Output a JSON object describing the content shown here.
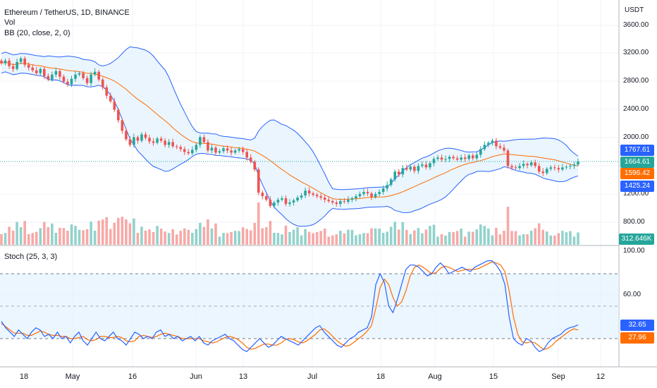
{
  "header": {
    "symbol_title": "Ethereum / TetherUS, 1D, BINANCE",
    "vol_label": "Vol",
    "bb_label": "BB (20, close, 2, 0)",
    "stoch_label": "Stoch (25, 3, 3)"
  },
  "price_axis": {
    "unit": "USDT",
    "ticks": [
      "3600.00",
      "3200.00",
      "2800.00",
      "2400.00",
      "2000.00",
      "1200.00",
      "800.00"
    ]
  },
  "stoch_axis": {
    "ticks": [
      "100.00",
      "60.00"
    ]
  },
  "time_axis": {
    "ticks": [
      "18",
      "May",
      "16",
      "Jun",
      "13",
      "Jul",
      "18",
      "Aug",
      "15",
      "Sep",
      "12"
    ]
  },
  "badges": {
    "bb_upper": "1767.61",
    "last_price": "1664.61",
    "bb_basis": "1596.42",
    "bb_lower": "1425.24",
    "volume": "312.646K",
    "stoch_k": "32.65",
    "stoch_d": "27.96"
  },
  "colors": {
    "up": "#26a69a",
    "down": "#ef5350",
    "bb_band": "#2962ff",
    "bb_basis": "#ff6d00",
    "bb_fill": "#e3f2fd",
    "stoch_k": "#2962ff",
    "stoch_d": "#ff6d00",
    "stoch_band": "#e3f2fd",
    "last_price_badge": "#26a69a",
    "volume_badge": "#26a69a"
  },
  "chart_data": {
    "type": "candlestick",
    "price_ylim": [
      600,
      3800
    ],
    "stoch_ylim": [
      0,
      100
    ],
    "stoch_levels": [
      80,
      50,
      20
    ],
    "close_series": [
      3060,
      3100,
      3020,
      2980,
      3080,
      3130,
      3040,
      3000,
      2960,
      2920,
      2980,
      2880,
      2830,
      2900,
      2950,
      2870,
      2800,
      2760,
      2840,
      2900,
      2920,
      2850,
      2780,
      2900,
      2940,
      2830,
      2720,
      2600,
      2520,
      2400,
      2250,
      2100,
      1980,
      1900,
      2010,
      1960,
      2050,
      2000,
      1950,
      1930,
      1990,
      1960,
      1900,
      1940,
      1880,
      1870,
      1840,
      1800,
      1780,
      1830,
      1900,
      2010,
      1940,
      1820,
      1860,
      1790,
      1810,
      1850,
      1820,
      1790,
      1820,
      1840,
      1800,
      1720,
      1660,
      1550,
      1220,
      1170,
      1120,
      1030,
      1080,
      1120,
      1140,
      1060,
      1080,
      1110,
      1150,
      1180,
      1250,
      1210,
      1190,
      1170,
      1150,
      1120,
      1100,
      1080,
      1060,
      1100,
      1090,
      1120,
      1140,
      1170,
      1200,
      1230,
      1210,
      1160,
      1200,
      1230,
      1280,
      1330,
      1410,
      1520,
      1480,
      1570,
      1550,
      1590,
      1530,
      1600,
      1620,
      1580,
      1640,
      1700,
      1720,
      1690,
      1700,
      1730,
      1710,
      1690,
      1720,
      1700,
      1750,
      1710,
      1760,
      1840,
      1900,
      1930,
      1960,
      1880,
      1860,
      1820,
      1600,
      1580,
      1570,
      1600,
      1630,
      1610,
      1650,
      1600,
      1520,
      1500,
      1560,
      1580,
      1570,
      1550,
      1580,
      1590,
      1600,
      1620,
      1664
    ],
    "stoch_k": [
      36,
      30,
      26,
      22,
      28,
      24,
      20,
      26,
      30,
      28,
      22,
      24,
      20,
      26,
      20,
      22,
      16,
      22,
      26,
      18,
      14,
      20,
      26,
      20,
      18,
      22,
      26,
      20,
      18,
      14,
      20,
      26,
      24,
      20,
      22,
      20,
      26,
      28,
      22,
      24,
      20,
      22,
      18,
      20,
      22,
      18,
      22,
      16,
      14,
      18,
      20,
      22,
      24,
      20,
      18,
      14,
      10,
      8,
      12,
      16,
      20,
      16,
      12,
      14,
      18,
      22,
      20,
      18,
      16,
      14,
      18,
      22,
      26,
      30,
      32,
      26,
      22,
      18,
      14,
      12,
      16,
      20,
      22,
      26,
      28,
      30,
      40,
      70,
      80,
      72,
      50,
      44,
      56,
      70,
      84,
      88,
      88,
      86,
      82,
      78,
      80,
      86,
      90,
      86,
      80,
      82,
      84,
      86,
      84,
      82,
      86,
      88,
      90,
      92,
      92,
      88,
      82,
      70,
      40,
      20,
      16,
      14,
      20,
      18,
      12,
      8,
      10,
      16,
      20,
      22,
      24,
      28,
      30,
      31,
      32.65
    ],
    "stoch_d": [
      34,
      31,
      28,
      25,
      25,
      25,
      23,
      23,
      25,
      27,
      26,
      24,
      23,
      23,
      22,
      22,
      20,
      20,
      21,
      22,
      19,
      18,
      19,
      22,
      22,
      21,
      21,
      22,
      21,
      18,
      17,
      18,
      22,
      23,
      22,
      21,
      22,
      24,
      25,
      24,
      23,
      22,
      20,
      20,
      20,
      20,
      20,
      18,
      17,
      16,
      17,
      19,
      21,
      22,
      21,
      19,
      16,
      12,
      10,
      11,
      13,
      15,
      15,
      14,
      14,
      16,
      19,
      20,
      19,
      17,
      16,
      18,
      21,
      24,
      28,
      29,
      26,
      22,
      18,
      15,
      13,
      14,
      17,
      20,
      23,
      27,
      32,
      48,
      67,
      75,
      70,
      58,
      50,
      54,
      64,
      78,
      86,
      88,
      86,
      83,
      80,
      81,
      85,
      87,
      86,
      84,
      82,
      83,
      84,
      84,
      84,
      85,
      87,
      89,
      91,
      90,
      88,
      82,
      64,
      40,
      24,
      17,
      16,
      17,
      16,
      13,
      10,
      11,
      14,
      18,
      21,
      24,
      27,
      29,
      27.96
    ]
  }
}
